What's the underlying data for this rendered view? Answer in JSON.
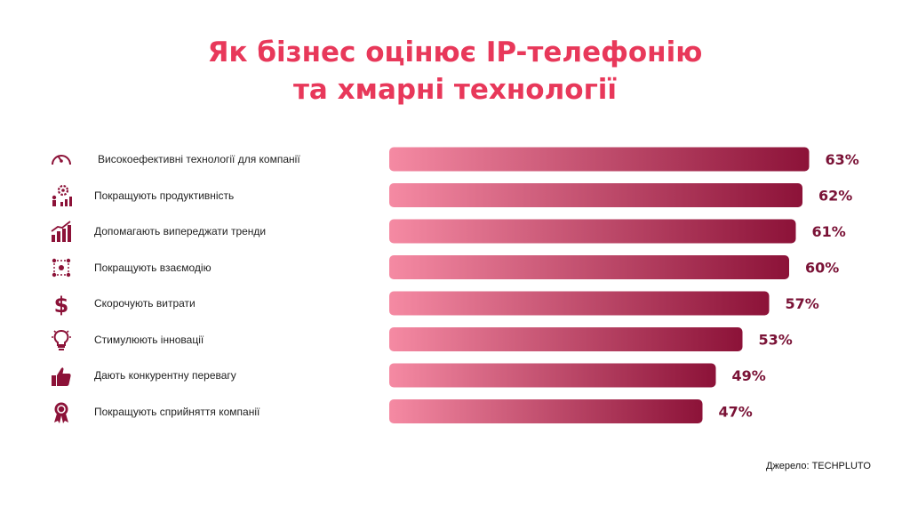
{
  "chart_data": {
    "type": "bar",
    "orientation": "horizontal",
    "title_lines": [
      "Як бізнес оцінює IP-телефонію",
      "та хмарні технології"
    ],
    "categories": [
      "Високоефективні технології для компанії",
      "Покращують продуктивність",
      "Допомагають випереджати тренди",
      "Покращують взаємодію",
      "Скорочують витрати",
      "Стимулюють інновації",
      "Дають конкурентну перевагу",
      "Покращують сприйняття компанії"
    ],
    "values": [
      63,
      62,
      61,
      60,
      57,
      53,
      49,
      47
    ],
    "value_labels": [
      "63%",
      "62%",
      "61%",
      "60%",
      "57%",
      "53%",
      "49%",
      "47%"
    ],
    "icons": [
      "speedometer-icon",
      "productivity-gear-icon",
      "growth-chart-icon",
      "team-interaction-icon",
      "dollar-icon",
      "lightbulb-icon",
      "thumbs-up-icon",
      "award-badge-icon"
    ],
    "unit": "%",
    "grid": false,
    "legend": "none",
    "colors": {
      "bar_start": "#f58aa3",
      "bar_end": "#8c1238",
      "value_text": "#7a1236",
      "title": "#e8385a",
      "icon": "#8c1238"
    },
    "source": "Джерело: TECHPLUTO"
  }
}
